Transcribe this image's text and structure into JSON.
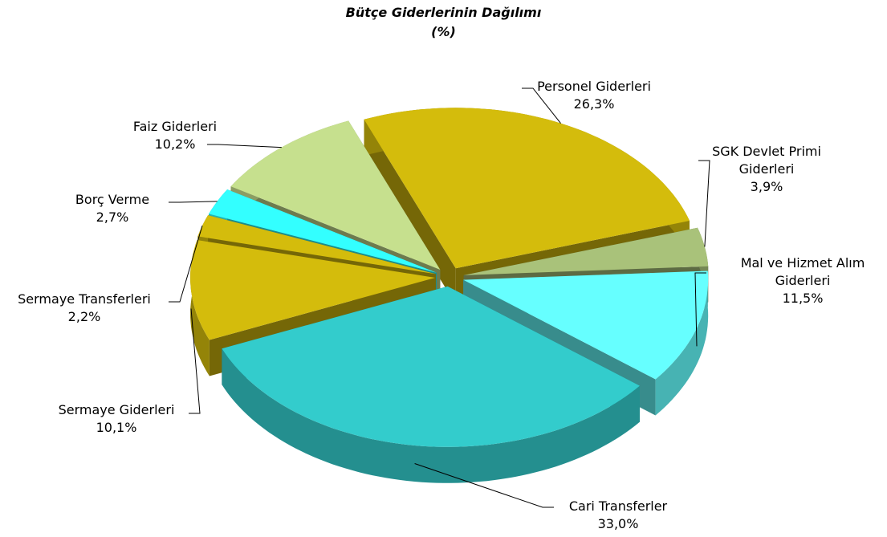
{
  "chart_data": {
    "type": "pie",
    "title": "Bütçe Giderlerinin Dağılımı",
    "subtitle": "(%)",
    "categories": [
      "Personel Giderleri",
      "SGK Devlet Primi Giderleri",
      "Mal ve Hizmet Alım Giderleri",
      "Cari Transferler",
      "Sermaye Giderleri",
      "Sermaye Transferleri",
      "Borç Verme",
      "Faiz Giderleri"
    ],
    "values": [
      26.3,
      3.9,
      11.5,
      33.0,
      10.1,
      2.2,
      2.7,
      10.2
    ],
    "value_labels": [
      "26,3%",
      "3,9%",
      "11,5%",
      "33,0%",
      "10,1%",
      "2,2%",
      "2,7%",
      "10,2%"
    ],
    "colors": [
      "#d4bc0c",
      "#a9c27a",
      "#66ffff",
      "#33cccc",
      "#d4bc0c",
      "#d4bc0c",
      "#33ffff",
      "#c6e08e"
    ]
  }
}
